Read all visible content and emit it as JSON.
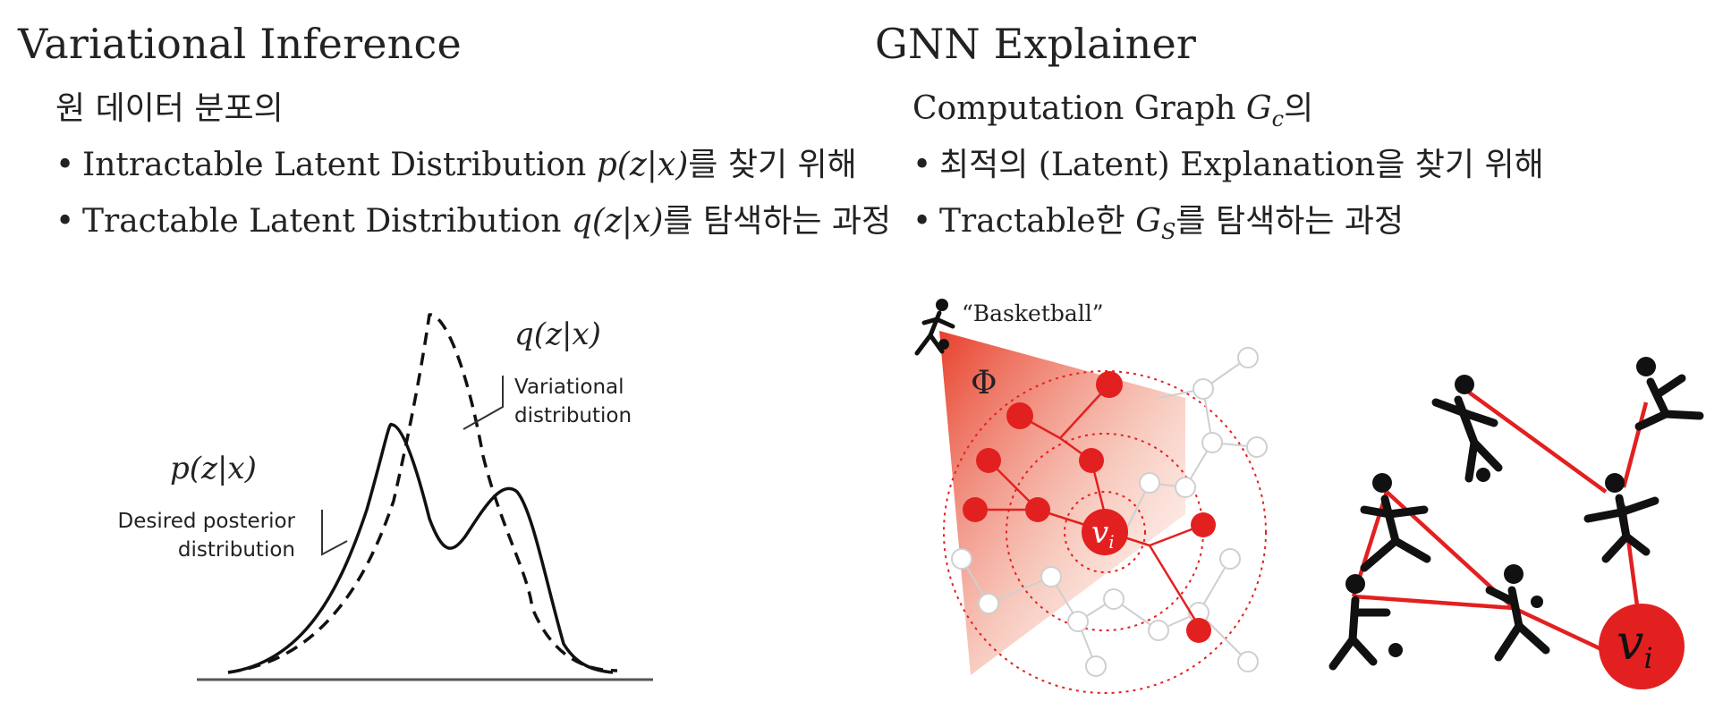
{
  "left": {
    "title": "Variational Inference",
    "sub": "원 데이터 분포의",
    "bullets": [
      {
        "pre": "Intractable Latent Distribution ",
        "math": "p(z|x)",
        "post": "를 찾기 위해"
      },
      {
        "pre": "Tractable Latent Distribution ",
        "math": "q(z|x)",
        "post": "를 탐색하는 과정"
      }
    ],
    "figure": {
      "q_label": "q(z|x)",
      "q_desc_1": "Variational",
      "q_desc_2": "distribution",
      "p_label": "p(z|x)",
      "p_desc_1": "Desired posterior",
      "p_desc_2": "distribution"
    }
  },
  "right": {
    "title": "GNN Explainer",
    "sub_pre": "Computation Graph ",
    "sub_math": "G",
    "sub_math_sub": "c",
    "sub_post": "의",
    "bullets": [
      {
        "pre": "최적의 (Latent) Explanation을 찾기 위해",
        "math": "",
        "math_sub": "",
        "post": ""
      },
      {
        "pre": "Tractable한 ",
        "math": "G",
        "math_sub": "S",
        "post": "를 탐색하는 과정"
      }
    ],
    "figure": {
      "basketball": "“Basketball”",
      "phi": "Φ",
      "node_label": "v",
      "node_sub": "i"
    }
  },
  "bullet_glyph": "•",
  "colors": {
    "accent_red": "#e32020",
    "gray": "#c8c8c8",
    "text": "#222222"
  }
}
